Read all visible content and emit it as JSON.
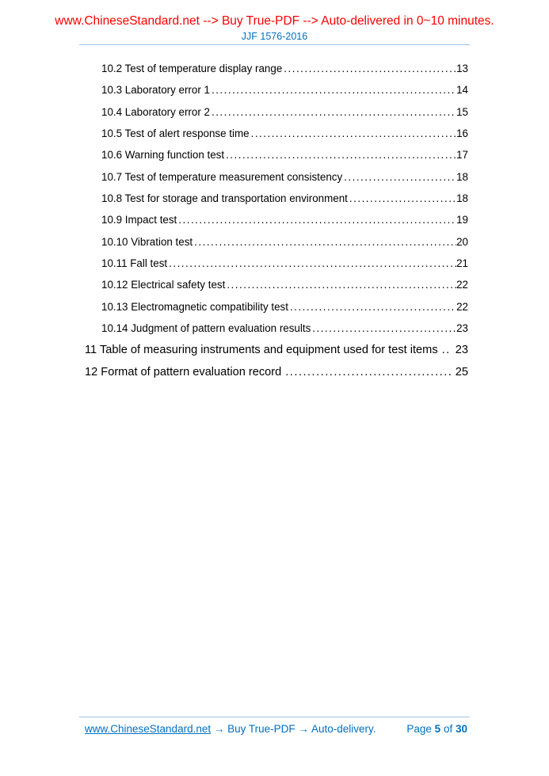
{
  "header": {
    "promo": "www.ChineseStandard.net --> Buy True-PDF --> Auto-delivered in 0~10 minutes.",
    "doc_code": "JJF 1576-2016"
  },
  "colors": {
    "promo_red": "#fe0000",
    "link_blue": "#0070c0",
    "rule_blue": "#9dc3e6",
    "text_black": "#000000"
  },
  "toc": {
    "entries": [
      {
        "label": "10.2 Test of temperature display range",
        "page": "13",
        "indent": true
      },
      {
        "label": "10.3 Laboratory error 1",
        "page": "14",
        "indent": true
      },
      {
        "label": "10.4 Laboratory error 2",
        "page": "15",
        "indent": true
      },
      {
        "label": "10.5 Test of alert response time",
        "page": "16",
        "indent": true
      },
      {
        "label": "10.6 Warning function test",
        "page": "17",
        "indent": true
      },
      {
        "label": "10.7 Test of temperature measurement consistency",
        "page": "18",
        "indent": true
      },
      {
        "label": "10.8 Test for storage and transportation environment",
        "page": "18",
        "indent": true
      },
      {
        "label": "10.9 Impact test",
        "page": "19",
        "indent": true
      },
      {
        "label": "10.10 Vibration test",
        "page": "20",
        "indent": true
      },
      {
        "label": "10.11 Fall test",
        "page": "21",
        "indent": true
      },
      {
        "label": "10.12 Electrical safety test",
        "page": "22",
        "indent": true
      },
      {
        "label": "10.13 Electromagnetic compatibility test",
        "page": "22",
        "indent": true
      },
      {
        "label": "10.14 Judgment of pattern evaluation results",
        "page": "23",
        "indent": true
      },
      {
        "label": "11 Table of measuring instruments and equipment used for test items",
        "page": "23",
        "indent": false
      },
      {
        "label": "12 Format of pattern evaluation record",
        "page": "25",
        "indent": false
      }
    ]
  },
  "footer": {
    "site": "www.ChineseStandard.net",
    "arrow1": "→",
    "buy": "Buy True-PDF",
    "arrow2": "→",
    "delivery": "Auto-delivery.",
    "page_label": "Page",
    "page_current": "5",
    "of_label": "of",
    "page_total": "30"
  }
}
